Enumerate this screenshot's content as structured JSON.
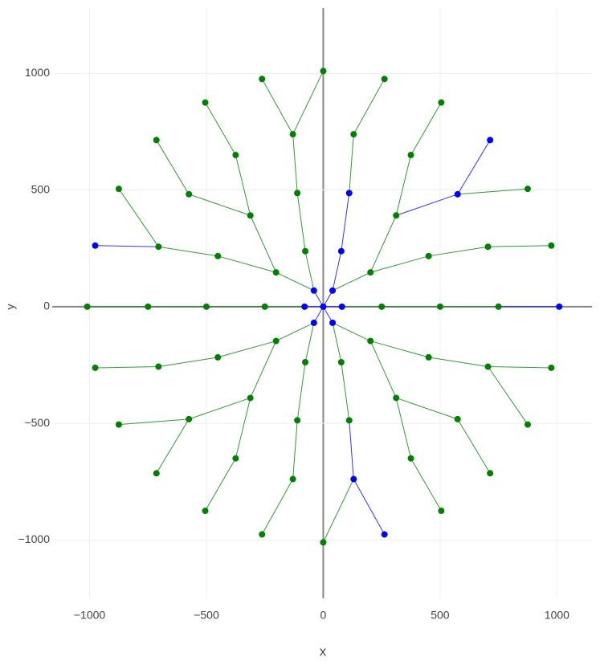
{
  "chart_data": {
    "type": "network",
    "x_label": "x",
    "y_label": "y",
    "x": [
      0,
      80,
      40,
      -40,
      -80,
      -40,
      40,
      250,
      202,
      77,
      -77,
      -202,
      -250,
      -202,
      -77,
      77,
      202,
      500,
      451,
      312,
      111,
      -111,
      -312,
      -451,
      -500,
      -451,
      -312,
      -111,
      111,
      312,
      451,
      750,
      705,
      575,
      375,
      130,
      -130,
      -375,
      -575,
      -705,
      -750,
      -705,
      -575,
      -375,
      -130,
      130,
      375,
      575,
      705,
      1010,
      976,
      875,
      714,
      505,
      262,
      0,
      -262,
      -505,
      -714,
      -875,
      -976,
      -1010,
      -976,
      -875,
      -714,
      -505,
      -262,
      0,
      262,
      505,
      714,
      875,
      976
    ],
    "y": [
      0,
      0,
      69,
      69,
      0,
      -69,
      -69,
      0,
      147,
      238,
      238,
      147,
      0,
      -147,
      -238,
      -238,
      -147,
      0,
      217,
      391,
      487,
      487,
      391,
      217,
      0,
      -217,
      -391,
      -487,
      -487,
      -391,
      -217,
      0,
      257,
      482,
      650,
      739,
      739,
      650,
      482,
      257,
      0,
      -257,
      -482,
      -650,
      -739,
      -739,
      -650,
      -482,
      -257,
      0,
      262,
      505,
      714,
      875,
      976,
      1010,
      976,
      875,
      714,
      505,
      262,
      0,
      -262,
      -505,
      -714,
      -875,
      -976,
      -1010,
      -976,
      -875,
      -714,
      -505,
      -262
    ],
    "parents": [
      null,
      0,
      0,
      0,
      0,
      0,
      0,
      1,
      2,
      2,
      3,
      3,
      4,
      5,
      5,
      6,
      6,
      7,
      8,
      8,
      9,
      10,
      11,
      11,
      12,
      13,
      13,
      14,
      15,
      16,
      16,
      17,
      18,
      19,
      19,
      20,
      21,
      22,
      22,
      23,
      24,
      25,
      26,
      26,
      27,
      28,
      29,
      29,
      30,
      31,
      32,
      33,
      33,
      34,
      35,
      36,
      36,
      37,
      38,
      39,
      39,
      40,
      41,
      42,
      42,
      43,
      44,
      45,
      45,
      46,
      47,
      48,
      48
    ],
    "colors": [
      "#0000ff",
      "#0000ff",
      "#0000ff",
      "#0000ff",
      "#0000ff",
      "#0000ff",
      "#0000ff",
      "#008000",
      "#008000",
      "#0000ff",
      "#008000",
      "#008000",
      "#008000",
      "#008000",
      "#008000",
      "#008000",
      "#008000",
      "#008000",
      "#008000",
      "#008000",
      "#0000ff",
      "#008000",
      "#008000",
      "#008000",
      "#008000",
      "#008000",
      "#008000",
      "#008000",
      "#008000",
      "#008000",
      "#008000",
      "#008000",
      "#008000",
      "#0000ff",
      "#008000",
      "#008000",
      "#008000",
      "#008000",
      "#008000",
      "#008000",
      "#008000",
      "#008000",
      "#008000",
      "#008000",
      "#008000",
      "#0000ff",
      "#008000",
      "#008000",
      "#008000",
      "#0000ff",
      "#008000",
      "#008000",
      "#0000ff",
      "#008000",
      "#008000",
      "#008000",
      "#008000",
      "#008000",
      "#008000",
      "#008000",
      "#0000ff",
      "#008000",
      "#008000",
      "#008000",
      "#008000",
      "#008000",
      "#008000",
      "#008000",
      "#0000ff",
      "#008000",
      "#008000",
      "#008000",
      "#008000"
    ],
    "xlim": [
      -1160,
      1150
    ],
    "ylim": [
      -1250,
      1280
    ],
    "xticks": [
      {
        "value": -1000,
        "label": "−1000"
      },
      {
        "value": -500,
        "label": "−500"
      },
      0,
      500,
      1000
    ],
    "yticks": [
      {
        "value": -1000,
        "label": "−1000"
      },
      {
        "value": -500,
        "label": "−500"
      },
      0,
      500,
      1000
    ],
    "grid": true
  }
}
